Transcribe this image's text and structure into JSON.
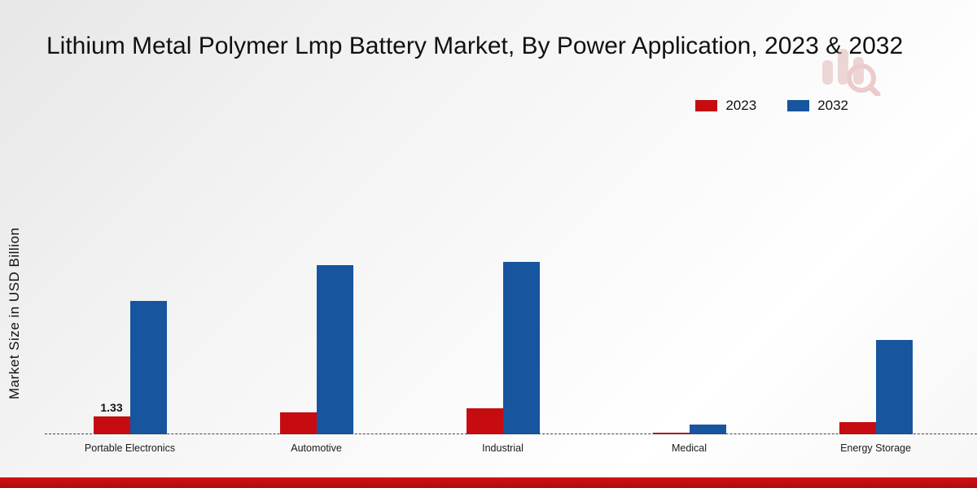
{
  "title": "Lithium Metal Polymer Lmp Battery Market, By Power Application, 2023 & 2032",
  "ylabel": "Market Size in USD Billion",
  "legend": [
    {
      "label": "2023",
      "color": "#c60c10"
    },
    {
      "label": "2032",
      "color": "#17559e"
    }
  ],
  "annotations": [
    {
      "series": 0,
      "index": 0,
      "text": "1.33"
    }
  ],
  "chart_data": {
    "type": "bar",
    "categories": [
      "Portable Electronics",
      "Automotive",
      "Industrial",
      "Medical",
      "Energy Storage"
    ],
    "series": [
      {
        "name": "2023",
        "color": "#c60c10",
        "values": [
          1.33,
          1.65,
          1.95,
          0.12,
          0.9
        ]
      },
      {
        "name": "2032",
        "color": "#17559e",
        "values": [
          10.0,
          12.7,
          12.9,
          0.75,
          7.1
        ]
      }
    ],
    "title": "Lithium Metal Polymer Lmp Battery Market, By Power Application, 2023 & 2032",
    "xlabel": "",
    "ylabel": "Market Size in USD Billion",
    "grid": false,
    "legend_position": "top-right",
    "baseline_style": "dashed"
  },
  "footer": {
    "bar_color": "#c00d0f"
  }
}
